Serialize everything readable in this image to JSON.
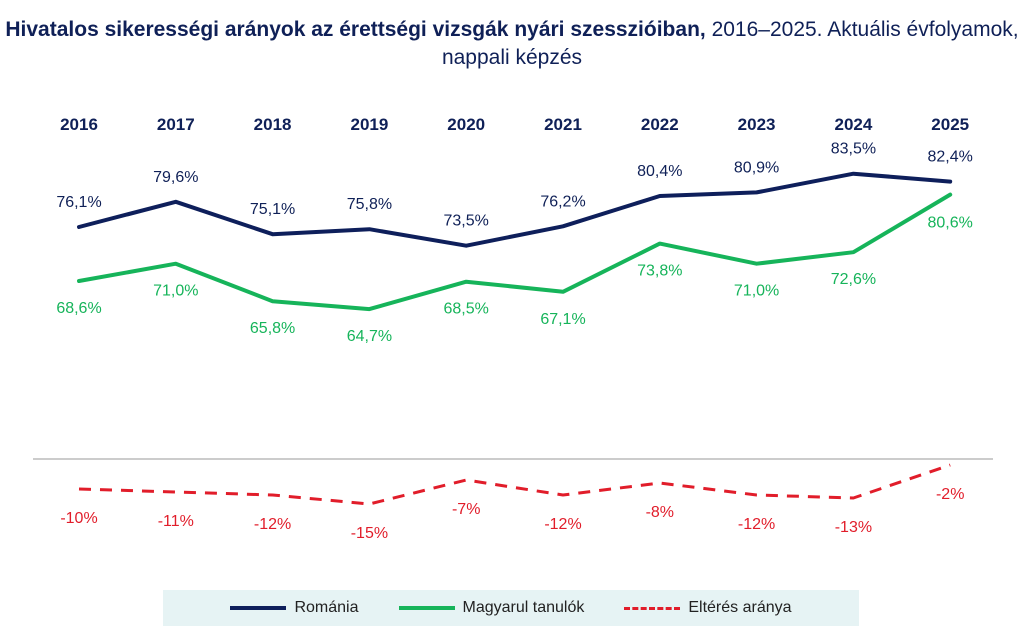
{
  "title": {
    "bold": "Hivatalos sikerességi arányok az érettségi vizsgák nyári szesszióiban,",
    "rest": " 2016–2025. Aktuális évfolyamok, nappali képzés"
  },
  "colors": {
    "romania": "#0e1f5b",
    "magyar": "#16b45a",
    "diff": "#e11d2a",
    "legend_bg": "#e6f3f4"
  },
  "chart_data": {
    "type": "line",
    "x": [
      "2016",
      "2017",
      "2018",
      "2019",
      "2020",
      "2021",
      "2022",
      "2023",
      "2024",
      "2025"
    ],
    "series": [
      {
        "name": "Románia",
        "values": [
          76.1,
          79.6,
          75.1,
          75.8,
          73.5,
          76.2,
          80.4,
          80.9,
          83.5,
          82.4
        ],
        "labels": [
          "76,1%",
          "79,6%",
          "75,1%",
          "75,8%",
          "73,5%",
          "76,2%",
          "80,4%",
          "80,9%",
          "83,5%",
          "82,4%"
        ]
      },
      {
        "name": "Magyarul tanulók",
        "values": [
          68.6,
          71.0,
          65.8,
          64.7,
          68.5,
          67.1,
          73.8,
          71.0,
          72.6,
          80.6
        ],
        "labels": [
          "68,6%",
          "71,0%",
          "65,8%",
          "64,7%",
          "68,5%",
          "67,1%",
          "73,8%",
          "71,0%",
          "72,6%",
          "80,6%"
        ]
      },
      {
        "name": "Eltérés aránya",
        "values": [
          -10,
          -11,
          -12,
          -15,
          -7,
          -12,
          -8,
          -12,
          -13,
          -2
        ],
        "labels": [
          "-10%",
          "-11%",
          "-12%",
          "-15%",
          "-7%",
          "-12%",
          "-8%",
          "-12%",
          "-13%",
          "-2%"
        ]
      }
    ],
    "x_position": "top",
    "y_axis_visible": false,
    "grid": false,
    "legend_position": "bottom"
  },
  "legend": [
    {
      "label": "Románia"
    },
    {
      "label": "Magyarul tanulók"
    },
    {
      "label": "Eltérés aránya"
    }
  ]
}
